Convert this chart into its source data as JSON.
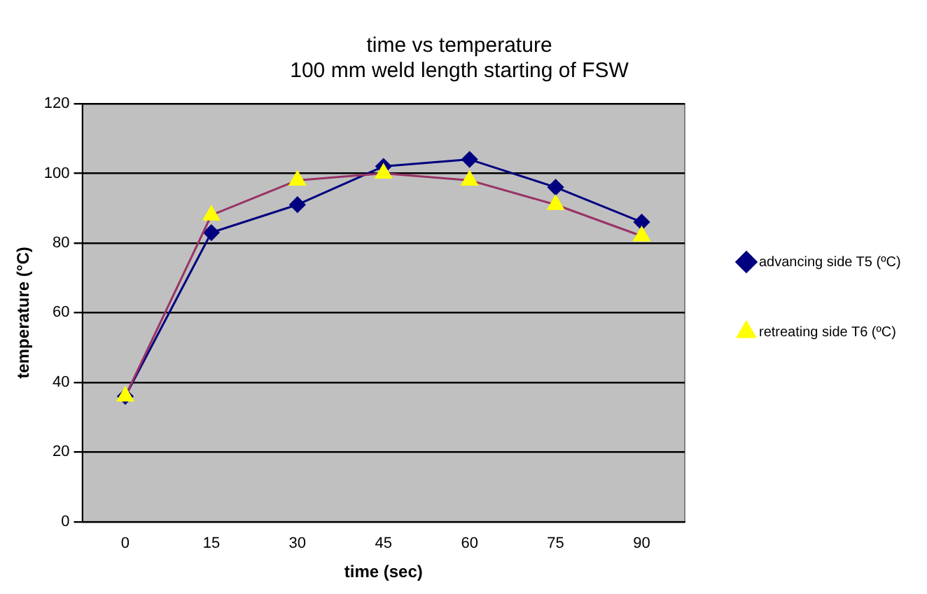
{
  "chart_data": {
    "type": "line",
    "title": [
      "time vs temperature",
      "100 mm weld length starting of FSW"
    ],
    "xlabel": "time (sec)",
    "ylabel": "temperature (°C)",
    "categories": [
      "0",
      "15",
      "30",
      "45",
      "60",
      "75",
      "90"
    ],
    "series": [
      {
        "name": "advancing side T5 (ºC)",
        "color": "#000080",
        "marker": "diamond",
        "values": [
          36,
          83,
          91,
          102,
          104,
          96,
          86
        ]
      },
      {
        "name": "retreating side T6 (ºC)",
        "color": "#993366",
        "marker": "triangle",
        "values": [
          36,
          88,
          98,
          100,
          98,
          91,
          82
        ]
      }
    ],
    "ylim": [
      0,
      120
    ],
    "yticks": [
      0,
      20,
      40,
      60,
      80,
      100,
      120
    ],
    "grid": "y",
    "legend": "right"
  }
}
